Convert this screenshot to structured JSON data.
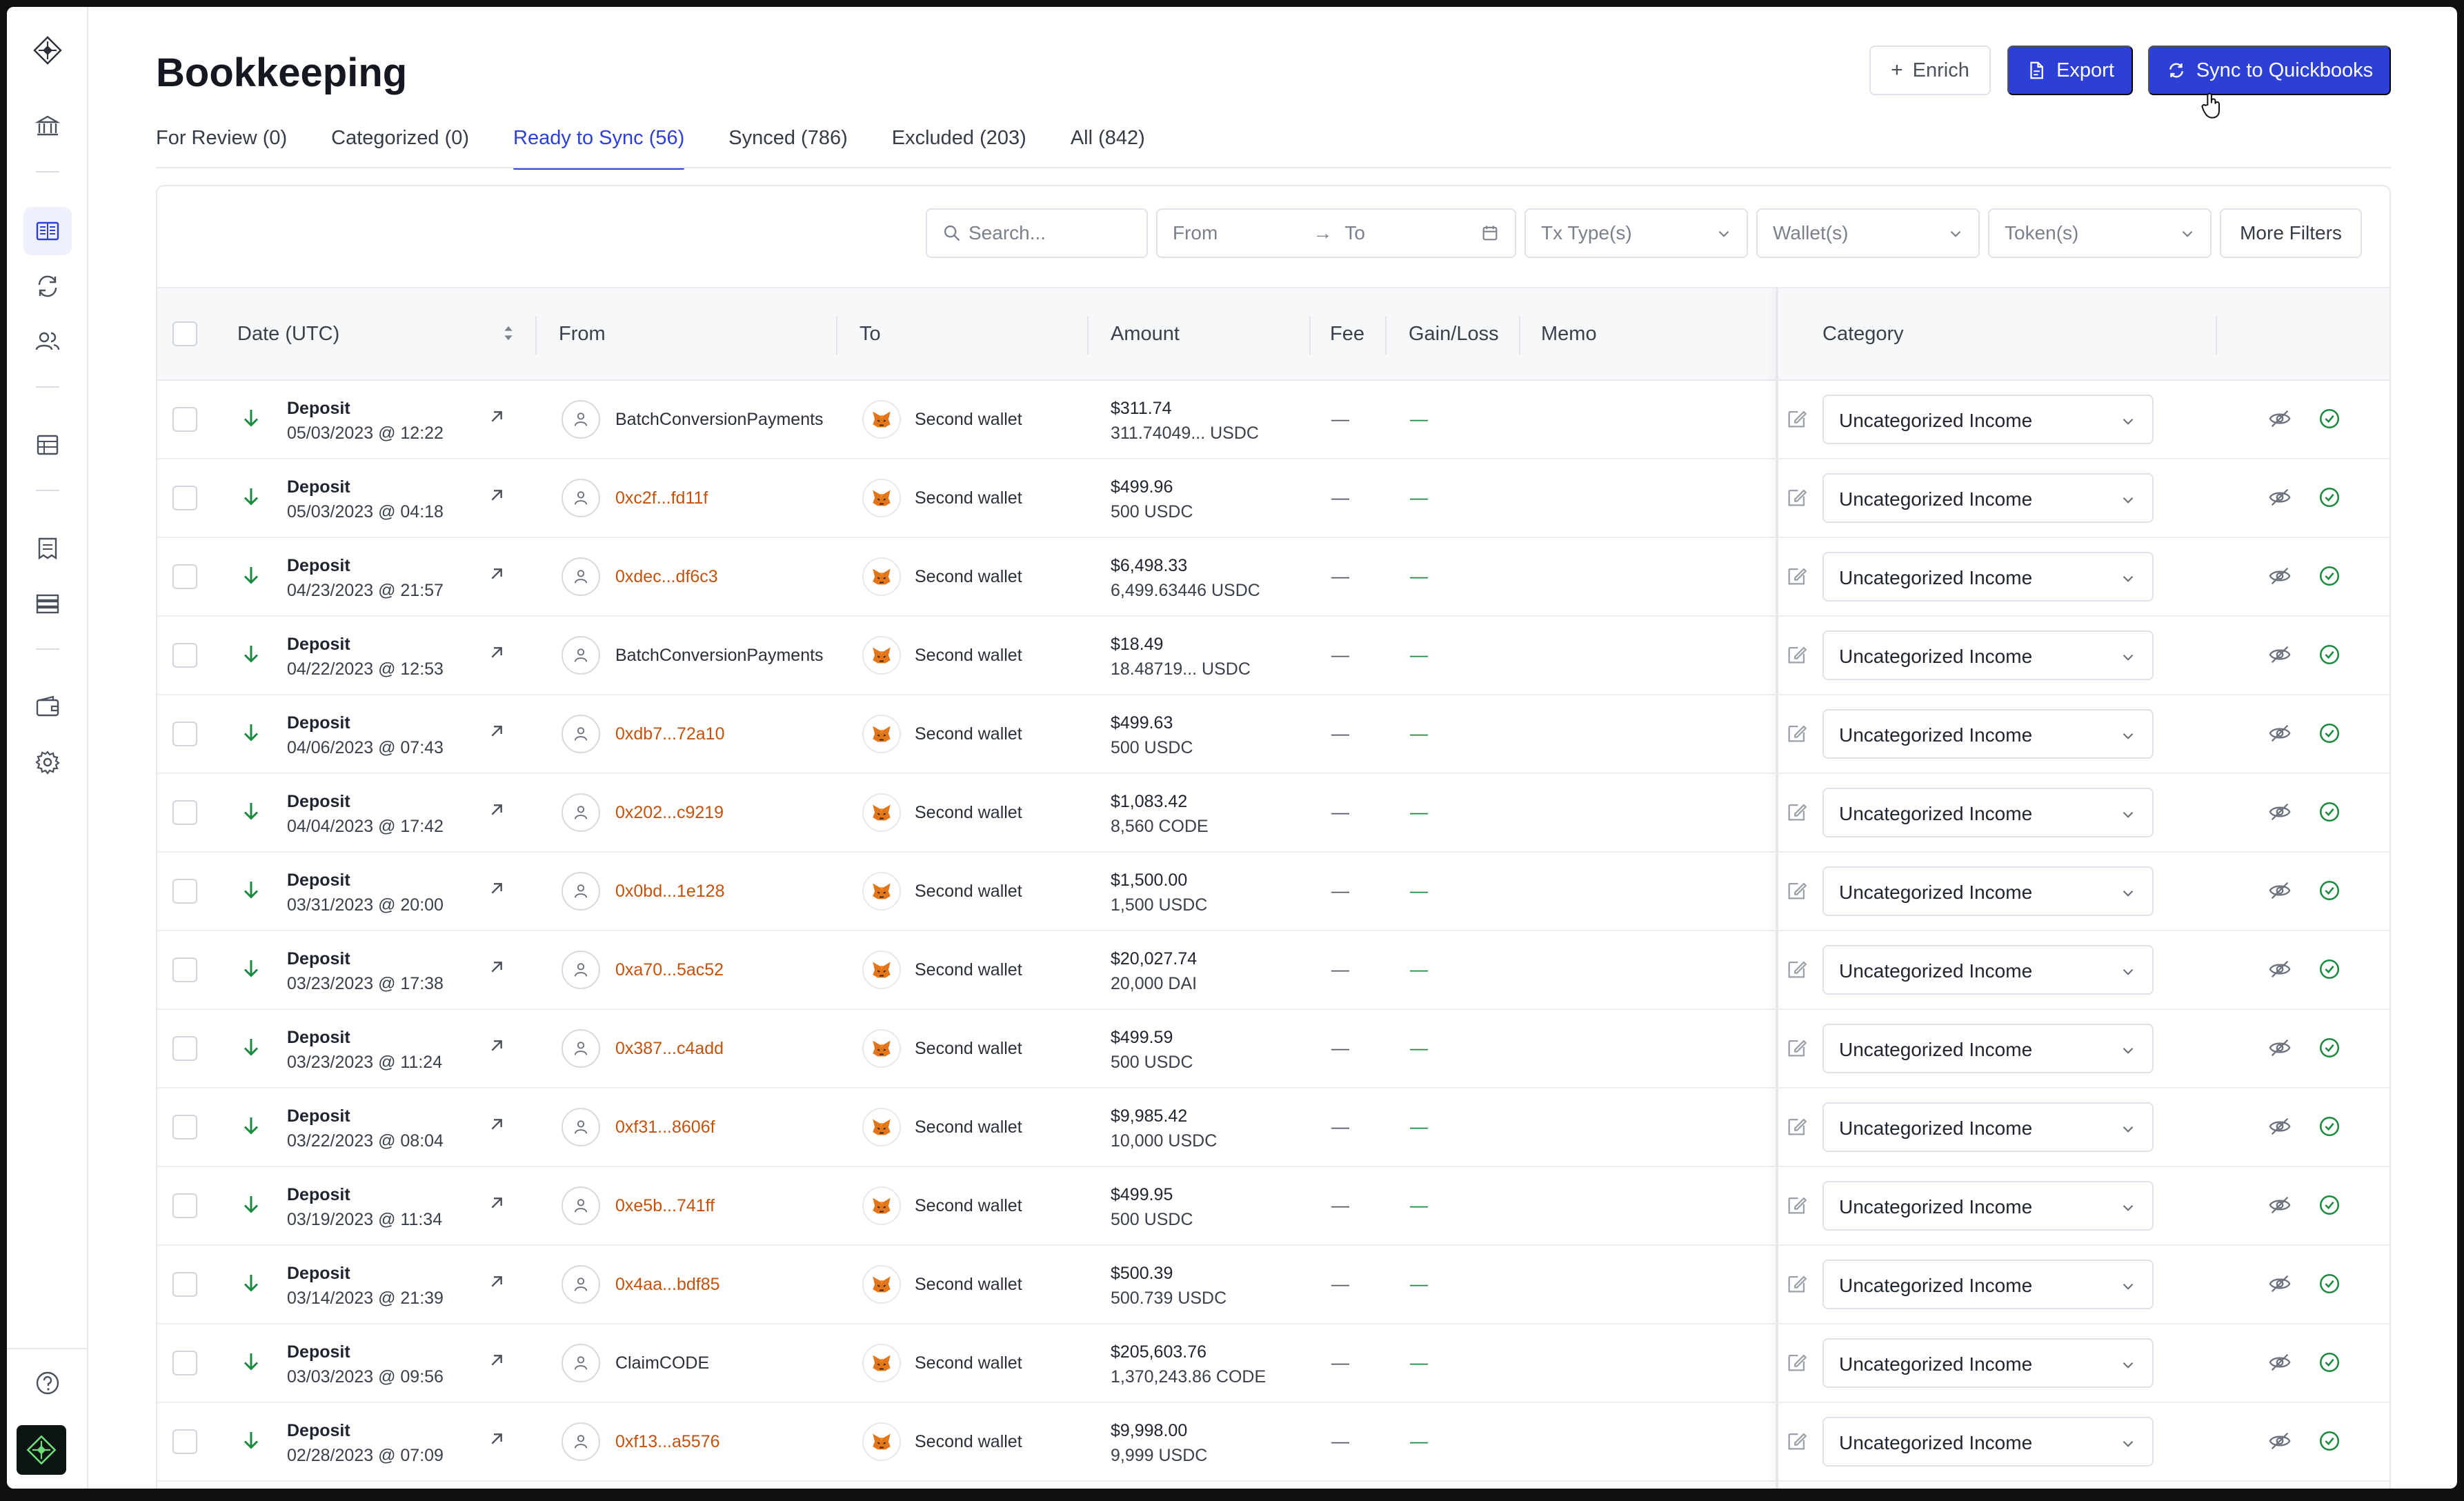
{
  "page": {
    "title": "Bookkeeping"
  },
  "actions": {
    "enrich": "Enrich",
    "export": "Export",
    "sync": "Sync to Quickbooks"
  },
  "tabs": [
    {
      "label": "For Review (0)",
      "active": false
    },
    {
      "label": "Categorized (0)",
      "active": false
    },
    {
      "label": "Ready to Sync (56)",
      "active": true
    },
    {
      "label": "Synced (786)",
      "active": false
    },
    {
      "label": "Excluded (203)",
      "active": false
    },
    {
      "label": "All (842)",
      "active": false
    }
  ],
  "filters": {
    "search_placeholder": "Search...",
    "from": "From",
    "to": "To",
    "tx_type": "Tx Type(s)",
    "wallet": "Wallet(s)",
    "token": "Token(s)",
    "more": "More Filters"
  },
  "table": {
    "headers": {
      "date": "Date (UTC)",
      "from": "From",
      "to": "To",
      "amount": "Amount",
      "fee": "Fee",
      "gain_loss": "Gain/Loss",
      "memo": "Memo",
      "category": "Category"
    },
    "rows": [
      {
        "type": "Deposit",
        "date": "05/03/2023 @ 12:22",
        "from": "BatchConversionPayments",
        "from_kind": "name",
        "to": "Second wallet",
        "usd": "$311.74",
        "token": "311.74049... USDC",
        "fee": "—",
        "gain": "—",
        "category": "Uncategorized Income"
      },
      {
        "type": "Deposit",
        "date": "05/03/2023 @ 04:18",
        "from": "0xc2f...fd11f",
        "from_kind": "addr",
        "to": "Second wallet",
        "usd": "$499.96",
        "token": "500 USDC",
        "fee": "—",
        "gain": "—",
        "category": "Uncategorized Income"
      },
      {
        "type": "Deposit",
        "date": "04/23/2023 @ 21:57",
        "from": "0xdec...df6c3",
        "from_kind": "addr",
        "to": "Second wallet",
        "usd": "$6,498.33",
        "token": "6,499.63446 USDC",
        "fee": "—",
        "gain": "—",
        "category": "Uncategorized Income"
      },
      {
        "type": "Deposit",
        "date": "04/22/2023 @ 12:53",
        "from": "BatchConversionPayments",
        "from_kind": "name",
        "to": "Second wallet",
        "usd": "$18.49",
        "token": "18.48719... USDC",
        "fee": "—",
        "gain": "—",
        "category": "Uncategorized Income"
      },
      {
        "type": "Deposit",
        "date": "04/06/2023 @ 07:43",
        "from": "0xdb7...72a10",
        "from_kind": "addr",
        "to": "Second wallet",
        "usd": "$499.63",
        "token": "500 USDC",
        "fee": "—",
        "gain": "—",
        "category": "Uncategorized Income"
      },
      {
        "type": "Deposit",
        "date": "04/04/2023 @ 17:42",
        "from": "0x202...c9219",
        "from_kind": "addr",
        "to": "Second wallet",
        "usd": "$1,083.42",
        "token": "8,560 CODE",
        "fee": "—",
        "gain": "—",
        "category": "Uncategorized Income"
      },
      {
        "type": "Deposit",
        "date": "03/31/2023 @ 20:00",
        "from": "0x0bd...1e128",
        "from_kind": "addr",
        "to": "Second wallet",
        "usd": "$1,500.00",
        "token": "1,500 USDC",
        "fee": "—",
        "gain": "—",
        "category": "Uncategorized Income"
      },
      {
        "type": "Deposit",
        "date": "03/23/2023 @ 17:38",
        "from": "0xa70...5ac52",
        "from_kind": "addr",
        "to": "Second wallet",
        "usd": "$20,027.74",
        "token": "20,000 DAI",
        "fee": "—",
        "gain": "—",
        "category": "Uncategorized Income"
      },
      {
        "type": "Deposit",
        "date": "03/23/2023 @ 11:24",
        "from": "0x387...c4add",
        "from_kind": "addr",
        "to": "Second wallet",
        "usd": "$499.59",
        "token": "500 USDC",
        "fee": "—",
        "gain": "—",
        "category": "Uncategorized Income"
      },
      {
        "type": "Deposit",
        "date": "03/22/2023 @ 08:04",
        "from": "0xf31...8606f",
        "from_kind": "addr",
        "to": "Second wallet",
        "usd": "$9,985.42",
        "token": "10,000 USDC",
        "fee": "—",
        "gain": "—",
        "category": "Uncategorized Income"
      },
      {
        "type": "Deposit",
        "date": "03/19/2023 @ 11:34",
        "from": "0xe5b...741ff",
        "from_kind": "addr",
        "to": "Second wallet",
        "usd": "$499.95",
        "token": "500 USDC",
        "fee": "—",
        "gain": "—",
        "category": "Uncategorized Income"
      },
      {
        "type": "Deposit",
        "date": "03/14/2023 @ 21:39",
        "from": "0x4aa...bdf85",
        "from_kind": "addr",
        "to": "Second wallet",
        "usd": "$500.39",
        "token": "500.739 USDC",
        "fee": "—",
        "gain": "—",
        "category": "Uncategorized Income"
      },
      {
        "type": "Deposit",
        "date": "03/03/2023 @ 09:56",
        "from": "ClaimCODE",
        "from_kind": "name",
        "to": "Second wallet",
        "usd": "$205,603.76",
        "token": "1,370,243.86 CODE",
        "fee": "—",
        "gain": "—",
        "category": "Uncategorized Income"
      },
      {
        "type": "Deposit",
        "date": "02/28/2023 @ 07:09",
        "from": "0xf13...a5576",
        "from_kind": "addr",
        "to": "Second wallet",
        "usd": "$9,998.00",
        "token": "9,999 USDC",
        "fee": "—",
        "gain": "—",
        "category": "Uncategorized Income"
      }
    ]
  },
  "colors": {
    "accent": "#2c3fd6",
    "address": "#c4520c",
    "positive": "#1c8a3f"
  },
  "icons": [
    "logo-icon",
    "bank-icon",
    "ledger-icon",
    "reconcile-icon",
    "users-icon",
    "table-icon",
    "invoice-icon",
    "server-icon",
    "wallet-icon",
    "gear-icon",
    "help-icon",
    "metamask-fox-icon",
    "deposit-arrow-icon",
    "external-link-icon",
    "edit-icon",
    "eye-off-icon",
    "check-circle-icon"
  ]
}
